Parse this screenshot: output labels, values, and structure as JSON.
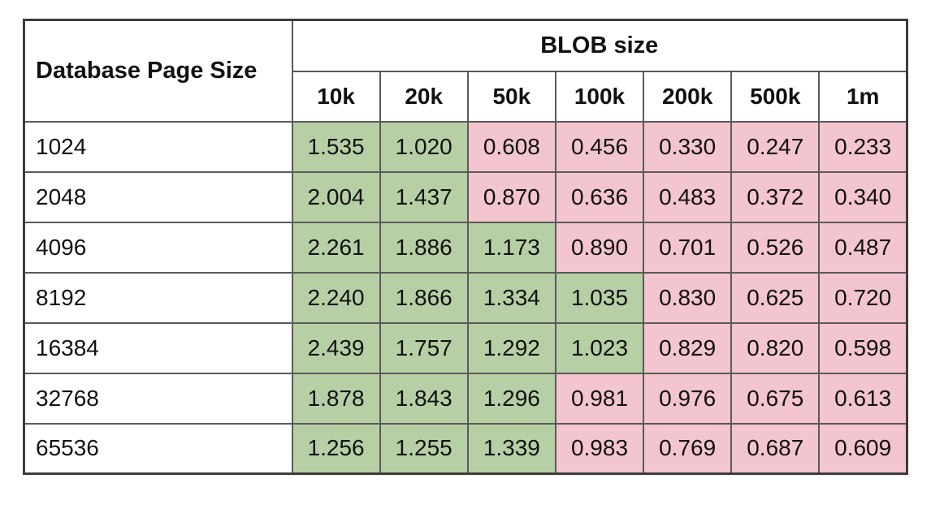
{
  "chart_data": {
    "type": "table",
    "corner_header": "Database Page Size",
    "group_header": "BLOB size",
    "columns": [
      "10k",
      "20k",
      "50k",
      "100k",
      "200k",
      "500k",
      "1m"
    ],
    "rows": [
      {
        "page_size": "1024",
        "values": [
          "1.535",
          "1.020",
          "0.608",
          "0.456",
          "0.330",
          "0.247",
          "0.233"
        ]
      },
      {
        "page_size": "2048",
        "values": [
          "2.004",
          "1.437",
          "0.870",
          "0.636",
          "0.483",
          "0.372",
          "0.340"
        ]
      },
      {
        "page_size": "4096",
        "values": [
          "2.261",
          "1.886",
          "1.173",
          "0.890",
          "0.701",
          "0.526",
          "0.487"
        ]
      },
      {
        "page_size": "8192",
        "values": [
          "2.240",
          "1.866",
          "1.334",
          "1.035",
          "0.830",
          "0.625",
          "0.720"
        ]
      },
      {
        "page_size": "16384",
        "values": [
          "2.439",
          "1.757",
          "1.292",
          "1.023",
          "0.829",
          "0.820",
          "0.598"
        ]
      },
      {
        "page_size": "32768",
        "values": [
          "1.878",
          "1.843",
          "1.296",
          "0.981",
          "0.976",
          "0.675",
          "0.613"
        ]
      },
      {
        "page_size": "65536",
        "values": [
          "1.256",
          "1.255",
          "1.339",
          "0.983",
          "0.769",
          "0.687",
          "0.609"
        ]
      }
    ],
    "cell_coloring": {
      "rule": "green if value >= threshold, pink otherwise",
      "threshold": 1.0,
      "green": "#b7cfa5",
      "pink": "#f3c5ce"
    }
  }
}
